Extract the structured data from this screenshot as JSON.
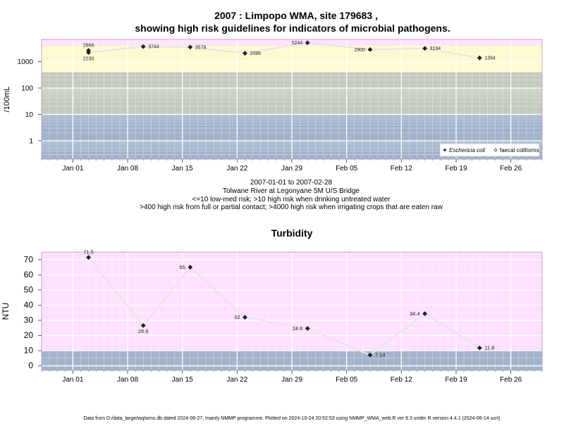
{
  "title_line1": "2007 : Limpopo WMA, site 179683 ,",
  "title_line2": "showing high risk guidelines for indicators of microbial pathogens.",
  "subtitle_lines": [
    "2007-01-01 to 2007-02-28",
    "Tolwane River at Legonyane 5M U/S Bridge",
    "<=10 low-med risk; >10 high risk when drinking untreated water",
    ">400 high risk from full or partial contact; >4000 high risk when irrigating crops that are eaten raw"
  ],
  "footer": "Data from D:/data_large/wq/wms.db dated 2024-08-27, mainly NMMP programme. Plotted on 2024-10-24 20:52:53 using NMMP_WMA_web.R ver 9.3 under R version 4.4.1 (2024-06-14 ucrt)",
  "colors": {
    "band_pink": "#ffe0ff",
    "band_yellow": "#fff9cf",
    "band_sage": "#c4cbbe",
    "band_blue": "#a2b4cc",
    "line": "#e6e6e6",
    "point": "#222222",
    "grid": "#ffffff",
    "frame": "#b094c0"
  },
  "chart_data": [
    {
      "type": "line",
      "title": "",
      "xlabel": "",
      "ylabel": "/100mL",
      "log_scale_y": true,
      "ylim": [
        0.2,
        7000
      ],
      "yticks": [
        1,
        10,
        100,
        1000
      ],
      "ytick_labels": [
        "1",
        "10",
        "100",
        "1000"
      ],
      "xlim": [
        "2006-12-28",
        "2007-03-02"
      ],
      "xticks": [
        "2007-01-01",
        "2007-01-08",
        "2007-01-15",
        "2007-01-22",
        "2007-01-29",
        "2007-02-05",
        "2007-02-12",
        "2007-02-19",
        "2007-02-26"
      ],
      "xtick_labels": [
        "Jan 01",
        "Jan 08",
        "Jan 15",
        "Jan 22",
        "Jan 29",
        "Feb 05",
        "Feb 12",
        "Feb 19",
        "Feb 26"
      ],
      "bands": [
        {
          "from": 4000,
          "to": 7000,
          "color": "#ffe0ff"
        },
        {
          "from": 400,
          "to": 4000,
          "color": "#fff9cf"
        },
        {
          "from": 10,
          "to": 400,
          "color": "#c4cbbe"
        },
        {
          "from": 0.2,
          "to": 10,
          "color": "#a2b4cc"
        }
      ],
      "grid": true,
      "legend_position": "bottom-right",
      "series": [
        {
          "name": "Eschericia coli",
          "marker": "filled-diamond",
          "points": [
            {
              "x": "2007-01-03",
              "y": 2666,
              "label": "2666",
              "label_pos": "above"
            },
            {
              "x": "2007-01-03",
              "y": 2230,
              "label": "2230",
              "label_pos": "below"
            },
            {
              "x": "2007-01-10",
              "y": 3744,
              "label": "3744",
              "label_pos": "right"
            },
            {
              "x": "2007-01-16",
              "y": 3578,
              "label": "3578",
              "label_pos": "right"
            },
            {
              "x": "2007-01-23",
              "y": 2086,
              "label": "2086",
              "label_pos": "right"
            },
            {
              "x": "2007-01-31",
              "y": 5244,
              "label": "5244",
              "label_pos": "left"
            },
            {
              "x": "2007-02-08",
              "y": 2900,
              "label": "2900",
              "label_pos": "left"
            },
            {
              "x": "2007-02-15",
              "y": 3194,
              "label": "3194",
              "label_pos": "right"
            },
            {
              "x": "2007-02-22",
              "y": 1394,
              "label": "1394",
              "label_pos": "right"
            }
          ]
        },
        {
          "name": "faecal coliforms",
          "marker": "open-diamond",
          "points": []
        }
      ]
    },
    {
      "type": "line",
      "title": "Turbidity",
      "xlabel": "",
      "ylabel": "NTU",
      "log_scale_y": false,
      "ylim": [
        -3,
        75
      ],
      "yticks": [
        0,
        10,
        20,
        30,
        40,
        50,
        60,
        70
      ],
      "ytick_labels": [
        "0",
        "10",
        "20",
        "30",
        "40",
        "50",
        "60",
        "70"
      ],
      "xlim": [
        "2006-12-28",
        "2007-03-02"
      ],
      "xticks": [
        "2007-01-01",
        "2007-01-08",
        "2007-01-15",
        "2007-01-22",
        "2007-01-29",
        "2007-02-05",
        "2007-02-12",
        "2007-02-19",
        "2007-02-26"
      ],
      "xtick_labels": [
        "Jan 01",
        "Jan 08",
        "Jan 15",
        "Jan 22",
        "Jan 29",
        "Feb 05",
        "Feb 12",
        "Feb 19",
        "Feb 26"
      ],
      "bands": [
        {
          "from": 10,
          "to": 75,
          "color": "#ffe0ff"
        },
        {
          "from": -3,
          "to": 10,
          "color": "#a2b4cc"
        }
      ],
      "grid": true,
      "series": [
        {
          "name": "",
          "marker": "filled-diamond",
          "points": [
            {
              "x": "2007-01-03",
              "y": 71.5,
              "label": "71.5",
              "label_pos": "above"
            },
            {
              "x": "2007-01-10",
              "y": 26.6,
              "label": "26.6",
              "label_pos": "below"
            },
            {
              "x": "2007-01-16",
              "y": 65,
              "label": "65",
              "label_pos": "left"
            },
            {
              "x": "2007-01-23",
              "y": 32,
              "label": "32",
              "label_pos": "left"
            },
            {
              "x": "2007-01-31",
              "y": 24.6,
              "label": "24.6",
              "label_pos": "left"
            },
            {
              "x": "2007-02-08",
              "y": 7.14,
              "label": "7.14",
              "label_pos": "right"
            },
            {
              "x": "2007-02-15",
              "y": 34.4,
              "label": "34.4",
              "label_pos": "left"
            },
            {
              "x": "2007-02-22",
              "y": 11.8,
              "label": "11.8",
              "label_pos": "right"
            }
          ]
        }
      ]
    }
  ]
}
